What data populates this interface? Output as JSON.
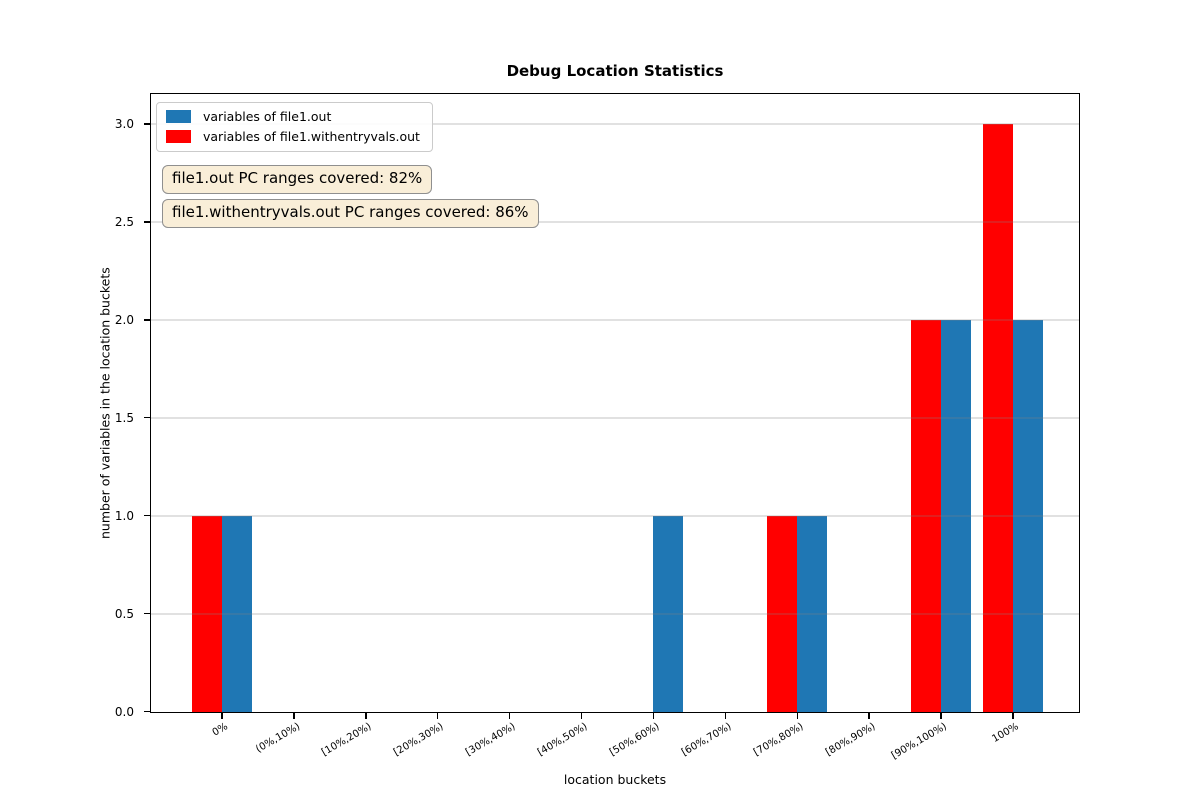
{
  "chart_data": {
    "type": "bar",
    "title": "Debug Location Statistics",
    "xlabel": "location buckets",
    "ylabel": "number of variables in the location buckets",
    "categories": [
      "0%",
      "(0%,10%)",
      "[10%,20%)",
      "[20%,30%)",
      "[30%,40%)",
      "[40%,50%)",
      "[50%,60%)",
      "[60%,70%)",
      "[70%,80%)",
      "[80%,90%)",
      "[90%,100%)",
      "100%"
    ],
    "series": [
      {
        "name": "variables of file1.out",
        "color": "#1f77b4",
        "values": [
          1,
          0,
          0,
          0,
          0,
          0,
          1,
          0,
          1,
          0,
          2,
          2
        ]
      },
      {
        "name": "variables of file1.withentryvals.out",
        "color": "#ff0000",
        "values": [
          1,
          0,
          0,
          0,
          0,
          0,
          0,
          0,
          1,
          0,
          2,
          3
        ]
      }
    ],
    "ylim": [
      0,
      3.15
    ],
    "yticks": [
      0,
      0.5,
      1,
      1.5,
      2,
      2.5,
      3
    ],
    "ytick_labels": [
      "0.0",
      "0.5",
      "1.0",
      "1.5",
      "2.0",
      "2.5",
      "3.0"
    ],
    "grid": true,
    "legend_position": "upper-left",
    "annotations": [
      "file1.out PC ranges covered: 82%",
      "file1.withentryvals.out PC ranges covered: 86%"
    ],
    "annotation_bg": "#f9eed8",
    "grid_color": "#e0e0e0"
  }
}
